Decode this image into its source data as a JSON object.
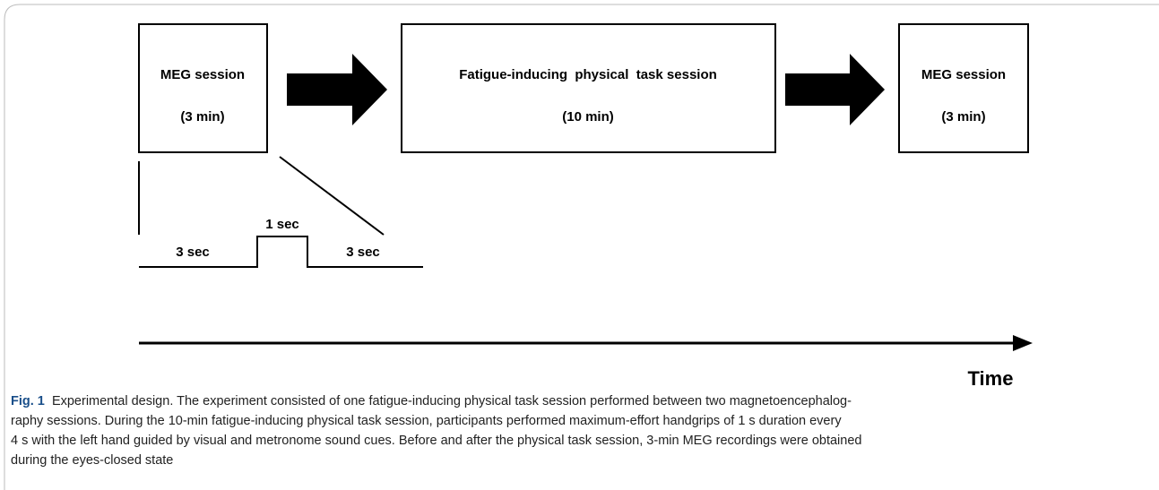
{
  "diagram": {
    "boxes": [
      {
        "title": "MEG session",
        "duration": "(3 min)"
      },
      {
        "title": "Fatigue-inducing  physical  task session",
        "duration": "(10 min)"
      },
      {
        "title": "MEG session",
        "duration": "(3 min)"
      }
    ],
    "timing": [
      "3 sec",
      "1 sec",
      "3 sec"
    ],
    "axis_label": "Time"
  },
  "caption": {
    "label": "Fig. 1",
    "lines": [
      "Experimental design. The experiment consisted of one fatigue-inducing physical task session performed between two magnetoencephalog-",
      "raphy sessions. During the 10-min fatigue-inducing physical task session, participants performed maximum-effort handgrips of 1 s duration every",
      "4 s with the left hand guided by visual and metronome sound cues. Before and after the physical task session, 3-min MEG recordings were obtained",
      "during the eyes-closed state"
    ]
  }
}
